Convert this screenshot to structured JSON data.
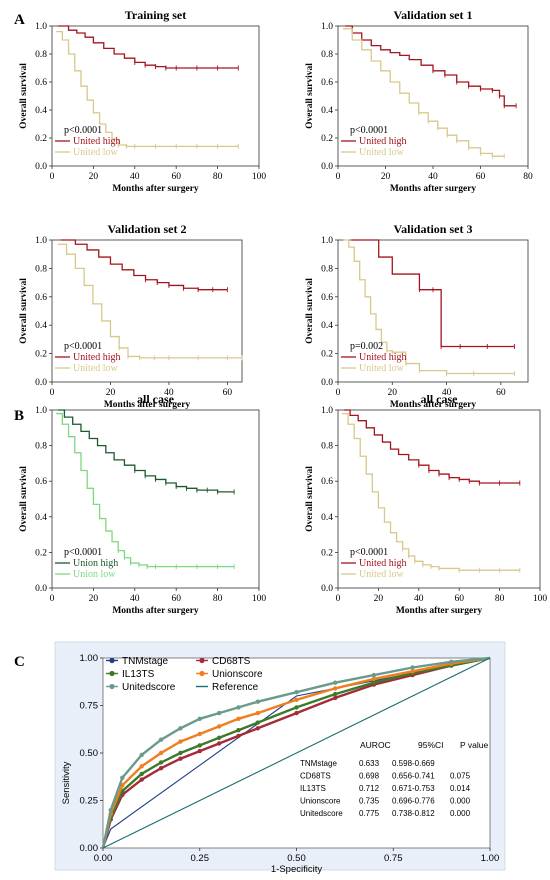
{
  "panels": [
    {
      "label": "A"
    },
    {
      "label": "B"
    },
    {
      "label": "C"
    }
  ],
  "chart_data": [
    {
      "type": "line",
      "title": "Training set",
      "xlabel": "Months after surgery",
      "ylabel": "Overall survival",
      "xlim": [
        0,
        100
      ],
      "ylim": [
        0,
        1.0
      ],
      "xticks": [
        "0",
        "20",
        "40",
        "60",
        "80",
        "100"
      ],
      "yticks": [
        "0.0",
        "0.2",
        "0.4",
        "0.6",
        "0.8",
        "1.0"
      ],
      "annotation": "p<0.0001",
      "legend_position": "bottom-left",
      "series": [
        {
          "name": "United high",
          "color": "#a3141e",
          "x": [
            3,
            8,
            12,
            16,
            20,
            25,
            30,
            35,
            40,
            45,
            50,
            55,
            60,
            70,
            80,
            90
          ],
          "y": [
            1.0,
            0.97,
            0.95,
            0.92,
            0.88,
            0.84,
            0.8,
            0.77,
            0.74,
            0.72,
            0.71,
            0.7,
            0.7,
            0.7,
            0.7,
            0.7
          ]
        },
        {
          "name": "United low",
          "color": "#d8c98a",
          "x": [
            2,
            5,
            8,
            11,
            14,
            17,
            20,
            23,
            26,
            29,
            32,
            36,
            40,
            50,
            60,
            70,
            80,
            90
          ],
          "y": [
            0.96,
            0.9,
            0.8,
            0.68,
            0.57,
            0.47,
            0.38,
            0.3,
            0.24,
            0.19,
            0.15,
            0.14,
            0.14,
            0.14,
            0.14,
            0.14,
            0.14,
            0.14
          ]
        }
      ]
    },
    {
      "type": "line",
      "title": "Validation set 1",
      "xlabel": "Months after surgery",
      "ylabel": "Overall survival",
      "xlim": [
        0,
        80
      ],
      "ylim": [
        0,
        1.0
      ],
      "xticks": [
        "0",
        "20",
        "40",
        "60",
        "80"
      ],
      "yticks": [
        "0.0",
        "0.2",
        "0.4",
        "0.6",
        "0.8",
        "1.0"
      ],
      "annotation": "p<0.0001",
      "legend_position": "bottom-left",
      "series": [
        {
          "name": "United high",
          "color": "#a3141e",
          "x": [
            3,
            6,
            10,
            14,
            18,
            22,
            26,
            30,
            35,
            40,
            45,
            50,
            55,
            60,
            65,
            68,
            70,
            75
          ],
          "y": [
            1.0,
            0.95,
            0.9,
            0.86,
            0.83,
            0.81,
            0.79,
            0.76,
            0.72,
            0.68,
            0.65,
            0.6,
            0.57,
            0.55,
            0.54,
            0.5,
            0.43,
            0.43
          ]
        },
        {
          "name": "United low",
          "color": "#d8c98a",
          "x": [
            2,
            6,
            10,
            14,
            18,
            22,
            26,
            30,
            34,
            38,
            42,
            46,
            50,
            55,
            60,
            65,
            70
          ],
          "y": [
            0.98,
            0.9,
            0.83,
            0.75,
            0.68,
            0.6,
            0.52,
            0.45,
            0.38,
            0.32,
            0.27,
            0.22,
            0.18,
            0.13,
            0.09,
            0.07,
            0.07
          ]
        }
      ]
    },
    {
      "type": "line",
      "title": "Validation set 2",
      "xlabel": "Months after surgery",
      "ylabel": "Overall survival",
      "xlim": [
        0,
        65
      ],
      "ylim": [
        0,
        1.0
      ],
      "xticks": [
        "0",
        "20",
        "40",
        "60"
      ],
      "yticks": [
        "0.0",
        "0.2",
        "0.4",
        "0.6",
        "0.8",
        "1.0"
      ],
      "annotation": "p<0.0001",
      "legend_position": "bottom-left",
      "series": [
        {
          "name": "United high",
          "color": "#a3141e",
          "x": [
            3,
            8,
            12,
            16,
            20,
            24,
            28,
            32,
            36,
            40,
            45,
            50,
            55,
            60
          ],
          "y": [
            1.0,
            0.97,
            0.93,
            0.88,
            0.83,
            0.79,
            0.75,
            0.72,
            0.7,
            0.68,
            0.66,
            0.65,
            0.65,
            0.65
          ]
        },
        {
          "name": "United low",
          "color": "#d8c98a",
          "x": [
            2,
            5,
            8,
            11,
            14,
            17,
            20,
            23,
            26,
            30,
            35,
            40,
            50,
            60,
            65
          ],
          "y": [
            0.97,
            0.9,
            0.8,
            0.68,
            0.55,
            0.43,
            0.32,
            0.24,
            0.18,
            0.17,
            0.17,
            0.17,
            0.17,
            0.17,
            0.17
          ]
        }
      ]
    },
    {
      "type": "line",
      "title": "Validation set 3",
      "xlabel": "Months after surgery",
      "ylabel": "Overall survival",
      "xlim": [
        0,
        70
      ],
      "ylim": [
        0,
        1.0
      ],
      "xticks": [
        "0",
        "20",
        "40",
        "60"
      ],
      "yticks": [
        "0.0",
        "0.2",
        "0.4",
        "0.6",
        "0.8",
        "1.0"
      ],
      "annotation": "p=0.002",
      "legend_position": "bottom-left",
      "series": [
        {
          "name": "United high",
          "color": "#a3141e",
          "x": [
            5,
            10,
            15,
            20,
            25,
            30,
            35,
            38,
            45,
            55,
            65
          ],
          "y": [
            1.0,
            1.0,
            0.88,
            0.76,
            0.76,
            0.65,
            0.65,
            0.25,
            0.25,
            0.25,
            0.25
          ]
        },
        {
          "name": "United low",
          "color": "#d8c98a",
          "x": [
            2,
            4,
            6,
            8,
            10,
            12,
            14,
            16,
            18,
            20,
            25,
            30,
            40,
            50,
            65
          ],
          "y": [
            1.0,
            0.95,
            0.85,
            0.72,
            0.6,
            0.48,
            0.37,
            0.28,
            0.22,
            0.21,
            0.13,
            0.08,
            0.06,
            0.06,
            0.06
          ]
        }
      ]
    },
    {
      "type": "line",
      "title": "all case",
      "xlabel": "Months after surgery",
      "ylabel": "Overall survival",
      "xlim": [
        0,
        100
      ],
      "ylim": [
        0,
        1.0
      ],
      "xticks": [
        "0",
        "20",
        "40",
        "60",
        "80",
        "100"
      ],
      "yticks": [
        "0.0",
        "0.2",
        "0.4",
        "0.6",
        "0.8",
        "1.0"
      ],
      "annotation": "p<0.0001",
      "legend_position": "bottom-left",
      "series": [
        {
          "name": "Union high",
          "color": "#1c5a2c",
          "x": [
            3,
            6,
            10,
            14,
            18,
            22,
            26,
            30,
            35,
            40,
            45,
            50,
            55,
            60,
            65,
            70,
            75,
            80,
            88
          ],
          "y": [
            1.0,
            0.96,
            0.92,
            0.88,
            0.84,
            0.8,
            0.76,
            0.72,
            0.69,
            0.66,
            0.63,
            0.61,
            0.59,
            0.57,
            0.56,
            0.55,
            0.55,
            0.54,
            0.54
          ]
        },
        {
          "name": "Union low",
          "color": "#7ed87e",
          "x": [
            2,
            5,
            8,
            11,
            14,
            17,
            20,
            23,
            26,
            29,
            32,
            35,
            38,
            42,
            46,
            50,
            60,
            70,
            80,
            88
          ],
          "y": [
            0.98,
            0.92,
            0.85,
            0.76,
            0.66,
            0.56,
            0.47,
            0.39,
            0.32,
            0.26,
            0.21,
            0.17,
            0.14,
            0.13,
            0.12,
            0.12,
            0.12,
            0.12,
            0.12,
            0.12
          ]
        }
      ]
    },
    {
      "type": "line",
      "title": "all case",
      "xlabel": "Months after surgery",
      "ylabel": "Overall survival",
      "xlim": [
        0,
        100
      ],
      "ylim": [
        0,
        1.0
      ],
      "xticks": [
        "0",
        "20",
        "40",
        "60",
        "80",
        "100"
      ],
      "yticks": [
        "0.0",
        "0.2",
        "0.4",
        "0.6",
        "0.8",
        "1.0"
      ],
      "annotation": "p<0.0001",
      "legend_position": "bottom-left",
      "series": [
        {
          "name": "United high",
          "color": "#a3141e",
          "x": [
            3,
            6,
            10,
            14,
            18,
            22,
            26,
            30,
            35,
            40,
            45,
            50,
            55,
            60,
            65,
            70,
            80,
            90
          ],
          "y": [
            1.0,
            0.97,
            0.94,
            0.9,
            0.86,
            0.82,
            0.78,
            0.75,
            0.72,
            0.69,
            0.66,
            0.64,
            0.62,
            0.61,
            0.6,
            0.59,
            0.59,
            0.59
          ]
        },
        {
          "name": "United low",
          "color": "#d8c98a",
          "x": [
            2,
            5,
            8,
            11,
            14,
            17,
            20,
            23,
            26,
            29,
            32,
            35,
            38,
            42,
            46,
            50,
            60,
            70,
            80,
            90
          ],
          "y": [
            0.98,
            0.92,
            0.84,
            0.74,
            0.64,
            0.54,
            0.45,
            0.37,
            0.31,
            0.26,
            0.22,
            0.18,
            0.15,
            0.13,
            0.12,
            0.11,
            0.1,
            0.1,
            0.1,
            0.1
          ]
        }
      ]
    },
    {
      "type": "line",
      "title": "",
      "xlabel": "1-Specificity",
      "ylabel": "Sensitivity",
      "xlim": [
        0,
        1
      ],
      "ylim": [
        0,
        1
      ],
      "xticks": [
        "0.00",
        "0.25",
        "0.50",
        "0.75",
        "1.00"
      ],
      "yticks": [
        "0.00",
        "0.25",
        "0.50",
        "0.75",
        "1.00"
      ],
      "legend_position": "top-left",
      "series": [
        {
          "name": "TNMstage",
          "color": "#1f3c88",
          "x": [
            0,
            0.02,
            0.5,
            1.0
          ],
          "y": [
            0,
            0.1,
            0.8,
            1.0
          ]
        },
        {
          "name": "CD68TS",
          "color": "#a52a3a",
          "x": [
            0,
            0.02,
            0.05,
            0.1,
            0.15,
            0.2,
            0.25,
            0.3,
            0.35,
            0.4,
            0.5,
            0.6,
            0.7,
            0.8,
            0.9,
            1.0
          ],
          "y": [
            0,
            0.15,
            0.28,
            0.36,
            0.42,
            0.47,
            0.51,
            0.55,
            0.59,
            0.63,
            0.71,
            0.79,
            0.86,
            0.91,
            0.96,
            1.0
          ]
        },
        {
          "name": "IL13TS",
          "color": "#3c7a2a",
          "x": [
            0,
            0.02,
            0.05,
            0.1,
            0.15,
            0.2,
            0.25,
            0.3,
            0.35,
            0.4,
            0.5,
            0.6,
            0.7,
            0.8,
            0.9,
            1.0
          ],
          "y": [
            0,
            0.16,
            0.3,
            0.39,
            0.45,
            0.5,
            0.54,
            0.58,
            0.62,
            0.66,
            0.74,
            0.81,
            0.87,
            0.92,
            0.96,
            1.0
          ]
        },
        {
          "name": "Unionscore",
          "color": "#f07d1e",
          "x": [
            0,
            0.02,
            0.05,
            0.1,
            0.15,
            0.2,
            0.25,
            0.3,
            0.35,
            0.4,
            0.5,
            0.6,
            0.7,
            0.8,
            0.9,
            1.0
          ],
          "y": [
            0,
            0.18,
            0.33,
            0.43,
            0.5,
            0.56,
            0.6,
            0.64,
            0.68,
            0.71,
            0.78,
            0.84,
            0.89,
            0.93,
            0.97,
            1.0
          ]
        },
        {
          "name": "Unitedscore",
          "color": "#6a9a8c",
          "x": [
            0,
            0.02,
            0.05,
            0.1,
            0.15,
            0.2,
            0.25,
            0.3,
            0.35,
            0.4,
            0.5,
            0.6,
            0.7,
            0.8,
            0.9,
            1.0
          ],
          "y": [
            0,
            0.2,
            0.37,
            0.49,
            0.57,
            0.63,
            0.68,
            0.71,
            0.74,
            0.77,
            0.82,
            0.87,
            0.91,
            0.95,
            0.98,
            1.0
          ]
        },
        {
          "name": "Reference",
          "color": "#1a6f70",
          "x": [
            0,
            1
          ],
          "y": [
            0,
            1
          ]
        }
      ],
      "table": {
        "headers": [
          "AUROC",
          "95%CI",
          "P  value"
        ],
        "rows": [
          {
            "label": "TNMstage",
            "auroc": "0.633",
            "ci": "0.598-0.669",
            "p": ""
          },
          {
            "label": "CD68TS",
            "auroc": "0.698",
            "ci": "0.656-0.741",
            "p": "0.075"
          },
          {
            "label": "IL13TS",
            "auroc": "0.712",
            "ci": "0.671-0.753",
            "p": "0.014"
          },
          {
            "label": "Unionscore",
            "auroc": "0.735",
            "ci": "0.696-0.776",
            "p": "0.000"
          },
          {
            "label": "Unitedscore",
            "auroc": "0.775",
            "ci": "0.738-0.812",
            "p": "0.000"
          }
        ]
      }
    }
  ]
}
